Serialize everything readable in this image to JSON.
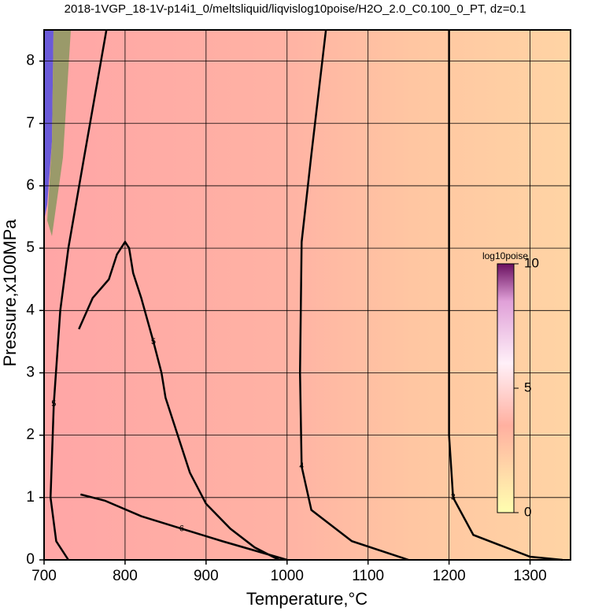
{
  "chart_data": {
    "type": "contour",
    "title": "2018-1VGP_18-1V-p14i1_0/meltsliquid/liqvislog10poise/H2O_2.0_C0.100_0_PT, dz=0.1",
    "x_label": "Temperature,°C",
    "y_label": "Pressure,x100MPa",
    "xlim": [
      700,
      1350
    ],
    "ylim": [
      0,
      8.5
    ],
    "xticks": [
      700,
      800,
      900,
      1000,
      1100,
      1200,
      1300
    ],
    "yticks": [
      0,
      1,
      2,
      3,
      4,
      5,
      6,
      7,
      8
    ],
    "grid": true,
    "color": "#000000",
    "contours": [
      {
        "name": "3",
        "x": [
          1200,
          1200,
          1200,
          1205,
          1230,
          1300,
          1340
        ],
        "y": [
          8.5,
          5,
          2,
          1,
          0.4,
          0.05,
          0
        ]
      },
      {
        "name": "4",
        "x": [
          1048,
          1030,
          1018,
          1016,
          1018,
          1030,
          1080,
          1150
        ],
        "y": [
          8.5,
          6.5,
          5.1,
          3,
          1.5,
          0.8,
          0.3,
          0
        ]
      },
      {
        "name": "5",
        "x": [
          777,
          750,
          730,
          720,
          712,
          708,
          715,
          730
        ],
        "y": [
          8.5,
          6.5,
          5,
          4,
          2.5,
          1,
          0.3,
          0
        ]
      },
      {
        "name": "5",
        "x": [
          743,
          760,
          780,
          790,
          800,
          805,
          810,
          820,
          835,
          845,
          850,
          865,
          880,
          900,
          930,
          960,
          990
        ],
        "y": [
          3.7,
          4.2,
          4.5,
          4.9,
          5.1,
          5.0,
          4.6,
          4.2,
          3.5,
          3.0,
          2.6,
          2.0,
          1.4,
          0.9,
          0.5,
          0.2,
          0
        ]
      },
      {
        "name": "6",
        "x": [
          745,
          775,
          820,
          870,
          920,
          960,
          1000
        ],
        "y": [
          1.05,
          0.95,
          0.7,
          0.5,
          0.3,
          0.15,
          0
        ]
      }
    ],
    "colorbar": {
      "label": "log10poise",
      "lim": [
        0,
        10
      ],
      "ticks": [
        0,
        5,
        10
      ]
    }
  }
}
